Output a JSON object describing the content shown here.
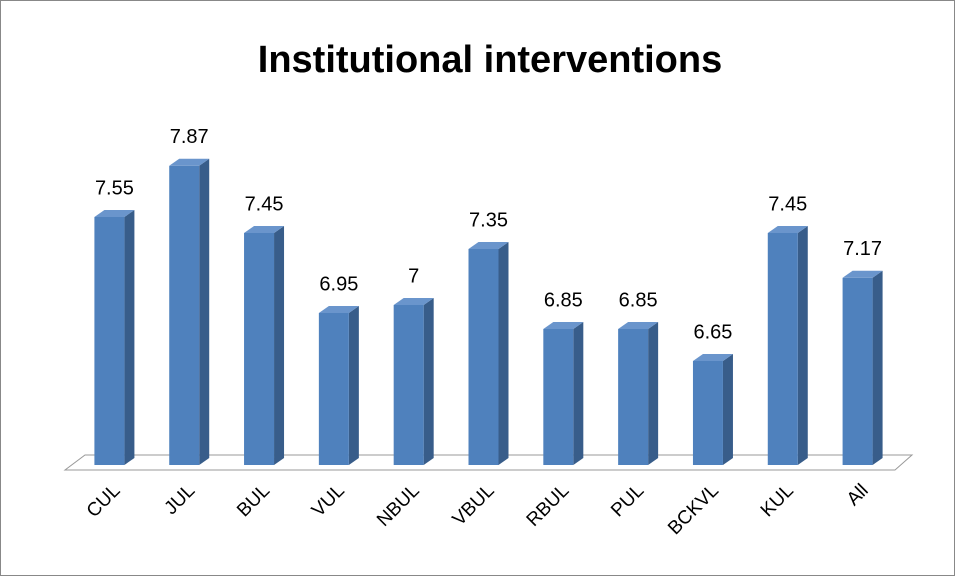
{
  "chart_data": {
    "type": "bar3d",
    "title": "Institutional interventions",
    "categories": [
      "CUL",
      "JUL",
      "BUL",
      "VUL",
      "NBUL",
      "VBUL",
      "RBUL",
      "PUL",
      "BCKVL",
      "KUL",
      "All"
    ],
    "values": [
      7.55,
      7.87,
      7.45,
      6.95,
      7,
      7.35,
      6.85,
      6.85,
      6.65,
      7.45,
      7.17
    ],
    "color": "#4f81bd",
    "ylim": [
      6,
      8
    ]
  }
}
